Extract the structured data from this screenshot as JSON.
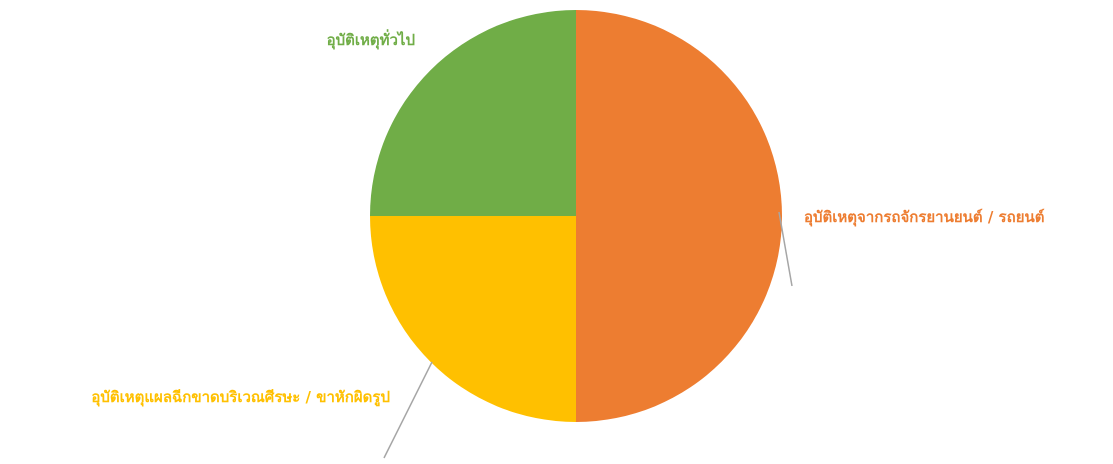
{
  "chart_data": {
    "type": "pie",
    "title": "",
    "series": [
      {
        "name": "",
        "values": [
          {
            "label": "อุบัติเหตุจากรถจักรยานยนต์ / รถยนต์",
            "value": 50,
            "color": "#ED7D31"
          },
          {
            "label": "อุบัติเหตุแผลฉีกขาดบริเวณศีรษะ /  ขาหักผิดรูป",
            "value": 25,
            "color": "#FFC000"
          },
          {
            "label": "อุบัติเหตุทั่วไป",
            "value": 25,
            "color": "#70AD47"
          }
        ]
      }
    ],
    "legend": "none",
    "start_angle": "top",
    "direction": "clockwise"
  }
}
